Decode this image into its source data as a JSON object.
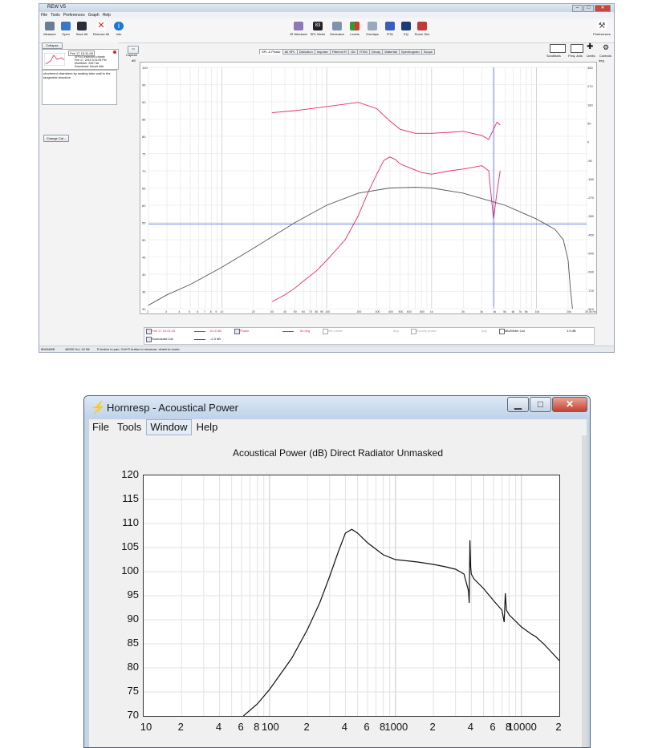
{
  "rew": {
    "title": "REW V5",
    "menu": [
      "File",
      "Tools",
      "Preferences",
      "Graph",
      "Help"
    ],
    "toolbar_left": [
      "Measure",
      "Open",
      "Save All",
      "Remove All",
      "Info"
    ],
    "toolbar_center": [
      "IR Windows",
      "SPL Meter",
      "Generator",
      "Levels",
      "Overlays",
      "RTA",
      "EQ",
      "Room Sim"
    ],
    "spl_meter_value": "83",
    "toolbar_right": [
      "Preferences"
    ],
    "collapse_label": "Collapse",
    "measurement": {
      "name": "Feb 17 15:31:05",
      "lines": [
        "SPEx3 extended chamb",
        "Feb 17, 2015 3:31:05 PM",
        "Mic/Meter: 2057 fat",
        "Soundcard: Secret Mixi"
      ]
    },
    "notes": "shortened chambers by sealing tube wall to the tangential structure",
    "change_cal_label": "Change Cal...",
    "capture_label": "Capture",
    "tabs": [
      "SPL & Phase",
      "All SPL",
      "Distortion",
      "Impulse",
      "Filtered IR",
      "GD",
      "RT60",
      "Decay",
      "Waterfall",
      "Spectrogram",
      "Scope"
    ],
    "active_tab": "SPL & Phase",
    "right_controls": [
      "Scrollbars",
      "Freq. Axis",
      "Limits",
      "Controls"
    ],
    "y_unit_left": "dB",
    "y_unit_right": "deg",
    "y_ticks_left": [
      "100",
      "95",
      "90",
      "85",
      "80",
      "75",
      "70",
      "65",
      "60",
      "55",
      "50",
      "45",
      "40",
      "35",
      "30"
    ],
    "y_ticks_right": [
      "360",
      "270",
      "180",
      "90",
      "0",
      "-90",
      "-180",
      "-270",
      "-360",
      "-450",
      "-540",
      "-630",
      "-720",
      "-810"
    ],
    "x_ticks": [
      "2",
      "3",
      "4",
      "5",
      "6",
      "7",
      "8",
      "9",
      "10",
      "20",
      "30",
      "40",
      "50",
      "60",
      "70",
      "80",
      "90",
      "100",
      "200",
      "300",
      "400",
      "500",
      "600",
      "800",
      "1k",
      "2k",
      "3k",
      "4k",
      "5k",
      "6k",
      "7k",
      "8k",
      "10k",
      "20k",
      "30.0k Hz"
    ],
    "cursor_freq": "3.89",
    "cursor_readout": "54.6",
    "legend_rows": [
      {
        "name": "Feb 17 15:31:05",
        "value": "61.8 dB",
        "phase_label": "Phase",
        "phase_value": "84 deg",
        "min_phase": "Min phase",
        "excess_phase": "Excess phase",
        "unit1": "deg",
        "unit2": "deg",
        "mic": "Mic/Meter Cal",
        "mic_value": "1.5 dB"
      },
      {
        "name": "Soundcard Cal",
        "value": "-2.3 dB"
      }
    ],
    "status_left": "8M/64MB",
    "status_mid": "48000 Hz | 16 Bit",
    "status_hint": "R button to pan; Ctrl+R button to measure; wheel to zoom;",
    "colors": {
      "spl": "#e8266e",
      "phase": "#e8266e",
      "cal": "#555555",
      "cursor": "#3b57e0"
    }
  },
  "hornresp": {
    "title": "Hornresp - Acoustical Power",
    "menu": [
      "File",
      "Tools",
      "Window",
      "Help"
    ],
    "highlighted_menu": "Window",
    "chart_title": "Acoustical Power (dB)   Direct Radiator   Unmasked",
    "min_icon": "minimize-icon",
    "max_icon": "maximize-icon",
    "close_icon": "close-icon"
  },
  "chart_data": [
    {
      "type": "line",
      "title": "",
      "x_scale": "log",
      "xlim": [
        2,
        30000
      ],
      "ylim_left": [
        30,
        100
      ],
      "ylim_right": [
        -810,
        360
      ],
      "series": [
        {
          "axis": "left",
          "x": [
            30,
            40,
            50,
            60,
            80,
            100,
            150,
            200,
            250,
            300,
            350,
            400,
            450,
            500,
            600,
            800,
            1000,
            1500,
            2000,
            2500,
            3000,
            3500,
            3890,
            4200,
            4500
          ],
          "y": [
            32,
            34,
            36,
            38,
            41,
            44,
            50,
            57,
            64,
            69,
            73,
            74,
            73.3,
            72,
            71,
            69.5,
            69,
            70,
            70.5,
            71,
            71.5,
            70,
            56,
            64,
            70
          ]
        },
        {
          "axis": "right",
          "x": [
            30,
            50,
            100,
            200,
            300,
            400,
            500,
            700,
            1000,
            1500,
            2000,
            3000,
            3500,
            3890,
            4200,
            4500
          ],
          "y": [
            140,
            150,
            170,
            190,
            160,
            100,
            60,
            40,
            40,
            45,
            50,
            30,
            10,
            60,
            95,
            80
          ]
        },
        {
          "axis": "left",
          "x": [
            2,
            3,
            5,
            10,
            20,
            50,
            100,
            200,
            400,
            700,
            1000,
            2000,
            5000,
            10000,
            15000,
            18000,
            20000,
            21000,
            22000
          ],
          "y": [
            31,
            34,
            37,
            42,
            47.5,
            55,
            60,
            63.5,
            65,
            65.2,
            65,
            63.5,
            60,
            56,
            53,
            50,
            44,
            36,
            30
          ]
        }
      ]
    },
    {
      "type": "line",
      "title": "Acoustical Power (dB)   Direct Radiator   Unmasked",
      "x_scale": "log",
      "xlim": [
        10,
        20000
      ],
      "ylim": [
        70,
        120
      ],
      "x_ticks": [
        "10",
        "2",
        "4",
        "6",
        "8",
        "100",
        "2",
        "4",
        "6",
        "8",
        "1000",
        "2",
        "4",
        "6",
        "8",
        "10000",
        "2"
      ],
      "y_ticks": [
        "120",
        "115",
        "110",
        "105",
        "100",
        "95",
        "90",
        "85",
        "80",
        "75",
        "70"
      ],
      "series": [
        {
          "x": [
            62,
            80,
            100,
            150,
            200,
            250,
            300,
            350,
            400,
            450,
            500,
            600,
            800,
            1000,
            1500,
            2000,
            2500,
            3000,
            3500,
            3800,
            3850,
            3900,
            3950,
            4000,
            4200,
            5000,
            6000,
            7000,
            7300,
            7450,
            7600,
            8000,
            10000,
            12000,
            13000,
            15000,
            17000,
            20000
          ],
          "y": [
            70,
            72.5,
            75.5,
            82,
            88,
            93.5,
            99,
            104,
            108,
            108.8,
            108,
            106,
            103.5,
            102.5,
            102,
            101.5,
            101,
            100.5,
            99.5,
            96,
            93.5,
            106.5,
            101,
            99.5,
            98.5,
            96.5,
            94,
            92,
            89.5,
            95.5,
            92,
            91,
            88.5,
            87,
            86.5,
            85,
            83.5,
            81.5
          ]
        }
      ]
    }
  ]
}
